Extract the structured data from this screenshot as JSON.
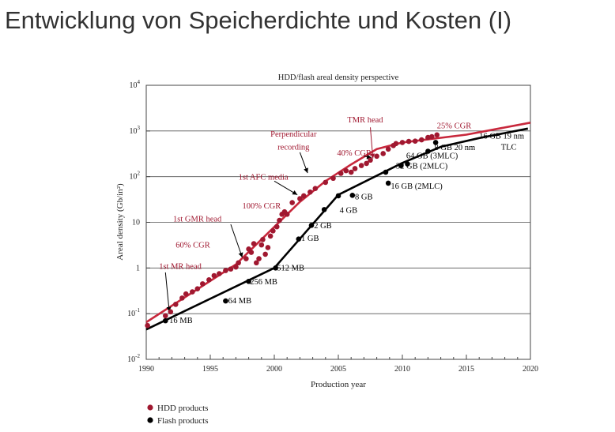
{
  "slide": {
    "title": "Entwicklung von Speicherdichte und Kosten (I)"
  },
  "colors": {
    "hdd": "#a01830",
    "hdd_line": "#c8283c",
    "flash": "#000000",
    "grid": "#555555",
    "text": "#222222"
  },
  "chart_data": {
    "type": "scatter",
    "title": "HDD/flash areal density perspective",
    "xlabel": "Production year",
    "ylabel": "Areal density (Gb/in²)",
    "xlim": [
      1990,
      2020
    ],
    "ylim": [
      0.01,
      10000
    ],
    "yscale": "log",
    "grid": "horizontal",
    "x_ticks": [
      "1990",
      "1995",
      "2000",
      "2005",
      "2010",
      "2015",
      "2020"
    ],
    "y_ticks": [
      {
        "value": 0.01,
        "base": "10",
        "exp": "-2"
      },
      {
        "value": 0.1,
        "base": "10",
        "exp": "-1"
      },
      {
        "value": 1,
        "base": "1",
        "exp": ""
      },
      {
        "value": 10,
        "base": "10",
        "exp": ""
      },
      {
        "value": 100,
        "base": "10",
        "exp": "2"
      },
      {
        "value": 1000,
        "base": "10",
        "exp": "3"
      },
      {
        "value": 10000,
        "base": "10",
        "exp": "4"
      }
    ],
    "legend": {
      "position": "bottom-left",
      "entries": [
        {
          "label": "HDD products",
          "color": "#a01830"
        },
        {
          "label": "Flash products",
          "color": "#000000"
        }
      ]
    },
    "series": [
      {
        "name": "HDD products",
        "kind": "points",
        "color": "#a01830",
        "points": [
          [
            1990.1,
            0.055
          ],
          [
            1991.5,
            0.09
          ],
          [
            1991.9,
            0.11
          ],
          [
            1992.3,
            0.16
          ],
          [
            1992.8,
            0.22
          ],
          [
            1993.1,
            0.27
          ],
          [
            1993.6,
            0.3
          ],
          [
            1994.0,
            0.35
          ],
          [
            1994.4,
            0.45
          ],
          [
            1994.9,
            0.55
          ],
          [
            1995.3,
            0.68
          ],
          [
            1995.7,
            0.75
          ],
          [
            1996.2,
            0.88
          ],
          [
            1996.6,
            0.95
          ],
          [
            1997.0,
            1.05
          ],
          [
            1997.2,
            1.3
          ],
          [
            1997.8,
            1.6
          ],
          [
            1998.0,
            2.6
          ],
          [
            1998.2,
            2.2
          ],
          [
            1998.4,
            3.4
          ],
          [
            1998.6,
            1.3
          ],
          [
            1998.8,
            1.6
          ],
          [
            1999.0,
            3.2
          ],
          [
            1999.1,
            4.2
          ],
          [
            1999.3,
            2.0
          ],
          [
            1999.5,
            2.8
          ],
          [
            1999.7,
            5.0
          ],
          [
            1999.9,
            6.5
          ],
          [
            2000.2,
            8.0
          ],
          [
            2000.4,
            11
          ],
          [
            2000.6,
            15
          ],
          [
            2000.8,
            17
          ],
          [
            2001.0,
            15
          ],
          [
            2001.4,
            27
          ],
          [
            2002.0,
            33
          ],
          [
            2002.3,
            38
          ],
          [
            2002.8,
            46
          ],
          [
            2003.2,
            55
          ],
          [
            2004.0,
            75
          ],
          [
            2004.6,
            92
          ],
          [
            2005.2,
            118
          ],
          [
            2005.6,
            135
          ],
          [
            2006.0,
            125
          ],
          [
            2006.3,
            150
          ],
          [
            2006.8,
            175
          ],
          [
            2007.2,
            195
          ],
          [
            2007.5,
            230
          ],
          [
            2008.0,
            280
          ],
          [
            2008.5,
            320
          ],
          [
            2008.9,
            400
          ],
          [
            2009.3,
            480
          ],
          [
            2009.5,
            530
          ],
          [
            2010.0,
            560
          ],
          [
            2010.5,
            590
          ],
          [
            2011.0,
            600
          ],
          [
            2011.5,
            640
          ],
          [
            2012.0,
            720
          ],
          [
            2012.3,
            750
          ],
          [
            2012.7,
            820
          ]
        ]
      },
      {
        "name": "HDD trend",
        "kind": "line",
        "color": "#c8283c",
        "points": [
          [
            1990,
            0.065
          ],
          [
            1997,
            1.2
          ],
          [
            2002,
            28
          ],
          [
            2004,
            80
          ],
          [
            2006,
            185
          ],
          [
            2008,
            400
          ],
          [
            2010,
            560
          ],
          [
            2015,
            830
          ],
          [
            2020,
            1520
          ]
        ]
      },
      {
        "name": "Flash products",
        "kind": "points",
        "color": "#000000",
        "points": [
          [
            1991.5,
            0.07
          ],
          [
            1996.2,
            0.19
          ],
          [
            1998.0,
            0.51
          ],
          [
            2000.1,
            1.0
          ],
          [
            2001.9,
            4.3
          ],
          [
            2002.9,
            8.6
          ],
          [
            2003.9,
            19
          ],
          [
            2005.0,
            38
          ],
          [
            2006.1,
            39
          ],
          [
            2008.9,
            72
          ],
          [
            2008.7,
            125
          ],
          [
            2009.9,
            175
          ],
          [
            2010.4,
            190
          ],
          [
            2012.0,
            360
          ],
          [
            2012.6,
            560
          ]
        ]
      },
      {
        "name": "Flash trend",
        "kind": "line",
        "color": "#000000",
        "points": [
          [
            1990,
            0.045
          ],
          [
            2000,
            1.0
          ],
          [
            2005,
            40
          ],
          [
            2010,
            200
          ],
          [
            2013,
            450
          ],
          [
            2016,
            700
          ],
          [
            2019.8,
            1130
          ]
        ]
      }
    ],
    "annotations": [
      {
        "text": "25% CGR",
        "color": "#a01830",
        "x": 2012.7,
        "y": 1150,
        "anchor": "start"
      },
      {
        "text": "TMR head",
        "color": "#a01830",
        "x": 2005.7,
        "y": 1550,
        "anchor": "start"
      },
      {
        "text": "40% CGR",
        "color": "#a01830",
        "x": 2004.9,
        "y": 290,
        "anchor": "start"
      },
      {
        "text": "Perpendicular",
        "color": "#a01830",
        "x": 2001.5,
        "y": 750,
        "anchor": "middle"
      },
      {
        "text": "recording",
        "color": "#a01830",
        "x": 2001.5,
        "y": 390,
        "anchor": "middle"
      },
      {
        "text": "1st AFC media",
        "color": "#a01830",
        "x": 1997.2,
        "y": 85,
        "anchor": "start"
      },
      {
        "text": "100% CGR",
        "color": "#a01830",
        "x": 1997.5,
        "y": 20,
        "anchor": "start"
      },
      {
        "text": "1st GMR head",
        "color": "#a01830",
        "x": 1992.1,
        "y": 10.5,
        "anchor": "start"
      },
      {
        "text": "60% CGR",
        "color": "#a01830",
        "x": 1992.3,
        "y": 2.8,
        "anchor": "start"
      },
      {
        "text": "1st MR head",
        "color": "#a01830",
        "x": 1991.0,
        "y": 0.95,
        "anchor": "start"
      },
      {
        "text": "16 GB 19 nm",
        "color": "#000000",
        "x": 2016.0,
        "y": 680,
        "anchor": "start"
      },
      {
        "text": "TLC",
        "color": "#000000",
        "x": 2017.7,
        "y": 390,
        "anchor": "start"
      },
      {
        "text": "8 GB 20 nm",
        "color": "#000000",
        "x": 2012.5,
        "y": 380,
        "anchor": "start"
      },
      {
        "text": "64 GB (3MLC)",
        "color": "#000000",
        "x": 2010.3,
        "y": 250,
        "anchor": "start"
      },
      {
        "text": "32 GB (2MLC)",
        "color": "#000000",
        "x": 2009.5,
        "y": 150,
        "anchor": "start"
      },
      {
        "text": "16 GB (2MLC)",
        "color": "#000000",
        "x": 2009.1,
        "y": 54,
        "anchor": "start"
      },
      {
        "text": "8 GB",
        "color": "#000000",
        "x": 2006.3,
        "y": 32,
        "anchor": "start"
      },
      {
        "text": "4 GB",
        "color": "#000000",
        "x": 2005.1,
        "y": 16,
        "anchor": "start"
      },
      {
        "text": "2 GB",
        "color": "#000000",
        "x": 2003.1,
        "y": 7.4,
        "anchor": "start"
      },
      {
        "text": "1 GB",
        "color": "#000000",
        "x": 2002.1,
        "y": 3.9,
        "anchor": "start"
      },
      {
        "text": "512 MB",
        "color": "#000000",
        "x": 2000.2,
        "y": 0.88,
        "anchor": "start"
      },
      {
        "text": "256 MB",
        "color": "#000000",
        "x": 1998.1,
        "y": 0.44,
        "anchor": "start"
      },
      {
        "text": "64 MB",
        "color": "#000000",
        "x": 1996.4,
        "y": 0.17,
        "anchor": "start"
      },
      {
        "text": "16 MB",
        "color": "#000000",
        "x": 1991.8,
        "y": 0.062,
        "anchor": "start"
      }
    ],
    "arrows": [
      {
        "name": "arrow-tmr-head",
        "color": "#a01830",
        "from": [
          2007.5,
          1200
        ],
        "to": [
          2007.7,
          250
        ]
      },
      {
        "name": "arrow-40-cgr",
        "color": "#000000",
        "from": [
          2007.0,
          280
        ],
        "to": [
          2007.6,
          260
        ]
      },
      {
        "name": "arrow-perpendicular",
        "color": "#000000",
        "from": [
          2002.0,
          340
        ],
        "to": [
          2002.6,
          120
        ]
      },
      {
        "name": "arrow-1st-afc",
        "color": "#000000",
        "from": [
          2000.0,
          80
        ],
        "to": [
          2001.8,
          40
        ]
      },
      {
        "name": "arrow-1st-gmr",
        "color": "#000000",
        "from": [
          1996.6,
          9.0
        ],
        "to": [
          1997.5,
          1.7
        ]
      },
      {
        "name": "arrow-1st-mr",
        "color": "#000000",
        "from": [
          1991.5,
          0.8
        ],
        "to": [
          1991.8,
          0.11
        ]
      }
    ]
  }
}
